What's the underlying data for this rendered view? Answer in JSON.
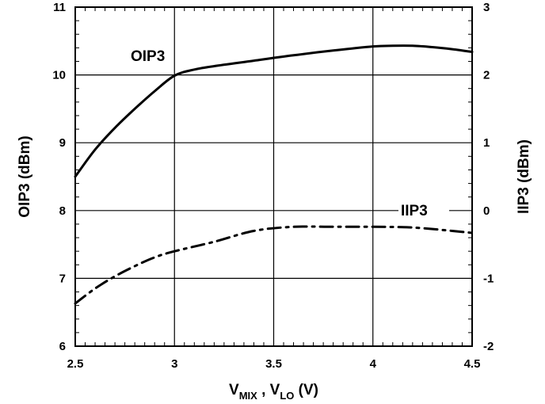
{
  "chart_data": {
    "type": "line",
    "x_range": [
      2.5,
      4.5
    ],
    "x_ticks": [
      "2.5",
      "3",
      "3.5",
      "4",
      "4.5"
    ],
    "x_label": {
      "main": "V",
      "sub1": "MIX",
      "sep": " , V",
      "sub2": "LO",
      "unit": " (V)"
    },
    "y_left_label": "OIP3 (dBm)",
    "y_left_range": [
      6,
      11
    ],
    "y_left_ticks": [
      "6",
      "7",
      "8",
      "9",
      "10",
      "11"
    ],
    "y_right_label": "IIP3 (dBm)",
    "y_right_range": [
      -2,
      3
    ],
    "y_right_ticks": [
      "-2",
      "-1",
      "0",
      "1",
      "2",
      "3"
    ],
    "grid": true,
    "series": [
      {
        "name": "OIP3",
        "axis": "left",
        "style": "solid",
        "x": [
          2.5,
          2.6,
          2.7,
          2.8,
          2.9,
          3.0,
          3.1,
          3.2,
          3.4,
          3.6,
          3.8,
          4.0,
          4.1,
          4.2,
          4.3,
          4.4,
          4.5
        ],
        "y": [
          8.5,
          8.9,
          9.22,
          9.5,
          9.76,
          9.99,
          10.08,
          10.13,
          10.21,
          10.29,
          10.36,
          10.42,
          10.43,
          10.43,
          10.41,
          10.38,
          10.34
        ]
      },
      {
        "name": "IIP3",
        "axis": "right",
        "style": "dashdot",
        "x": [
          2.5,
          2.6,
          2.7,
          2.8,
          2.9,
          3.0,
          3.2,
          3.4,
          3.6,
          3.8,
          4.0,
          4.2,
          4.4,
          4.5
        ],
        "y": [
          -1.37,
          -1.15,
          -0.97,
          -0.82,
          -0.69,
          -0.6,
          -0.46,
          -0.3,
          -0.24,
          -0.24,
          -0.24,
          -0.25,
          -0.3,
          -0.33
        ]
      }
    ]
  }
}
